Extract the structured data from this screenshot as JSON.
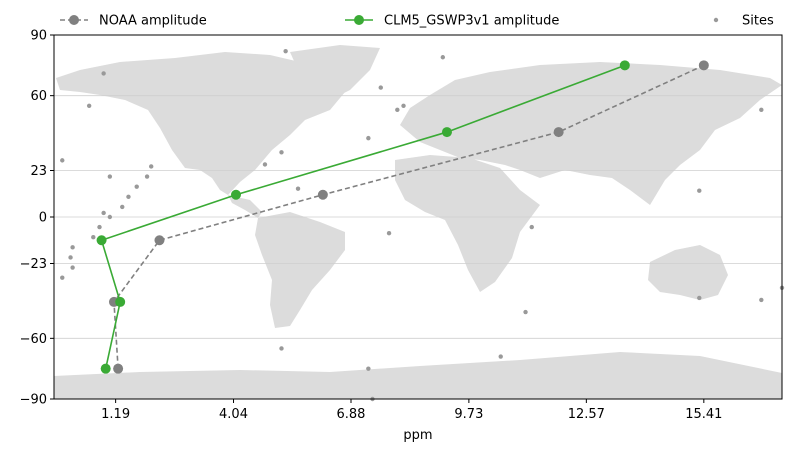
{
  "chart_data": {
    "type": "line",
    "xlabel": "ppm",
    "ylabel": "",
    "xlim": [
      -0.3,
      17.3
    ],
    "ylim": [
      -90,
      90
    ],
    "xticks": [
      1.19,
      4.04,
      6.88,
      9.73,
      12.57,
      15.41
    ],
    "xtick_labels": [
      "1.19",
      "4.04",
      "6.88",
      "9.73",
      "12.57",
      "15.41"
    ],
    "yticks": [
      90,
      60,
      23,
      0,
      -23,
      -60,
      -90
    ],
    "ytick_labels": [
      "90",
      "60",
      "23",
      "0",
      "−23",
      "−60",
      "−90"
    ],
    "grid": "horizontal",
    "legend_placement": "top",
    "background": "world-map",
    "series": [
      {
        "name": "NOAA amplitude",
        "color": "#808080",
        "style": "dashed",
        "points": [
          {
            "x": 1.25,
            "y": -75
          },
          {
            "x": 1.15,
            "y": -42
          },
          {
            "x": 2.25,
            "y": -11.5
          },
          {
            "x": 6.2,
            "y": 11
          },
          {
            "x": 11.9,
            "y": 42
          },
          {
            "x": 15.41,
            "y": 75
          }
        ]
      },
      {
        "name": "CLM5_GSWP3v1 amplitude",
        "color": "#3aaa35",
        "style": "solid",
        "points": [
          {
            "x": 0.95,
            "y": -75
          },
          {
            "x": 1.3,
            "y": -42
          },
          {
            "x": 0.85,
            "y": -11.5
          },
          {
            "x": 4.1,
            "y": 11
          },
          {
            "x": 9.2,
            "y": 42
          },
          {
            "x": 13.5,
            "y": 75
          }
        ]
      },
      {
        "name": "Sites",
        "color": "#999999",
        "style": "scatter",
        "points": [
          {
            "x": -0.1,
            "y": 28
          },
          {
            "x": 0.9,
            "y": 71
          },
          {
            "x": 0.55,
            "y": 55
          },
          {
            "x": 1.05,
            "y": 20
          },
          {
            "x": 1.7,
            "y": 15
          },
          {
            "x": 1.95,
            "y": 20
          },
          {
            "x": 2.05,
            "y": 25
          },
          {
            "x": 1.5,
            "y": 10
          },
          {
            "x": 1.35,
            "y": 5
          },
          {
            "x": 0.9,
            "y": 2
          },
          {
            "x": 1.05,
            "y": 0
          },
          {
            "x": 0.8,
            "y": -5
          },
          {
            "x": 0.65,
            "y": -10
          },
          {
            "x": 0.15,
            "y": -15
          },
          {
            "x": 0.1,
            "y": -20
          },
          {
            "x": 0.15,
            "y": -25
          },
          {
            "x": -0.1,
            "y": -30
          },
          {
            "x": 5.3,
            "y": 82
          },
          {
            "x": 7.6,
            "y": 64
          },
          {
            "x": 4.8,
            "y": 26
          },
          {
            "x": 5.2,
            "y": 32
          },
          {
            "x": 5.6,
            "y": 14
          },
          {
            "x": 7.3,
            "y": 39
          },
          {
            "x": 8.0,
            "y": 53
          },
          {
            "x": 8.15,
            "y": 55
          },
          {
            "x": 9.1,
            "y": 79
          },
          {
            "x": 7.8,
            "y": -8
          },
          {
            "x": 11.25,
            "y": -5
          },
          {
            "x": 11.1,
            "y": -47
          },
          {
            "x": 10.5,
            "y": -69
          },
          {
            "x": 5.2,
            "y": -65
          },
          {
            "x": 7.3,
            "y": -75
          },
          {
            "x": 7.4,
            "y": -90
          },
          {
            "x": 15.3,
            "y": 13
          },
          {
            "x": 15.3,
            "y": -40
          },
          {
            "x": 16.8,
            "y": 53
          },
          {
            "x": 16.8,
            "y": -41
          },
          {
            "x": 17.3,
            "y": -35
          }
        ]
      }
    ]
  }
}
